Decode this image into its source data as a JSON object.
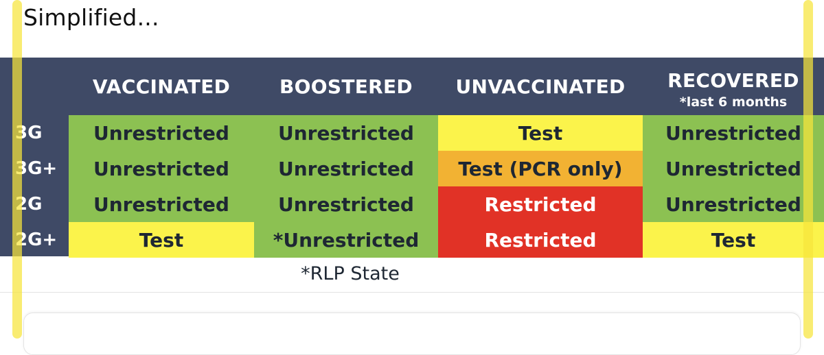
{
  "caption": "Simplified...",
  "table": {
    "columns": [
      {
        "label": "VACCINATED",
        "note": ""
      },
      {
        "label": "BOOSTERED",
        "note": ""
      },
      {
        "label": "UNVACCINATED",
        "note": ""
      },
      {
        "label": "RECOVERED",
        "note": "*last 6 months"
      }
    ],
    "rows": [
      {
        "label": "3G",
        "cells": [
          {
            "text": "Unrestricted",
            "status": "green"
          },
          {
            "text": "Unrestricted",
            "status": "green"
          },
          {
            "text": "Test",
            "status": "yellow"
          },
          {
            "text": "Unrestricted",
            "status": "green"
          }
        ]
      },
      {
        "label": "3G+",
        "cells": [
          {
            "text": "Unrestricted",
            "status": "green"
          },
          {
            "text": "Unrestricted",
            "status": "green"
          },
          {
            "text": "Test (PCR only)",
            "status": "orange"
          },
          {
            "text": "Unrestricted",
            "status": "green"
          }
        ]
      },
      {
        "label": "2G",
        "cells": [
          {
            "text": "Unrestricted",
            "status": "green"
          },
          {
            "text": "Unrestricted",
            "status": "green"
          },
          {
            "text": "Restricted",
            "status": "red"
          },
          {
            "text": "Unrestricted",
            "status": "green"
          }
        ]
      },
      {
        "label": "2G+",
        "cells": [
          {
            "text": "Test",
            "status": "yellow"
          },
          {
            "text": "*Unrestricted",
            "status": "green"
          },
          {
            "text": "Restricted",
            "status": "red"
          },
          {
            "text": "Test",
            "status": "yellow"
          }
        ]
      }
    ],
    "footnote": "*RLP State"
  },
  "colors": {
    "header_bg": "#3f4a66",
    "green": "#8cc152",
    "yellow": "#fbf34b",
    "orange": "#f2b233",
    "red": "#e13226",
    "highlighter": "#f7e43c"
  }
}
